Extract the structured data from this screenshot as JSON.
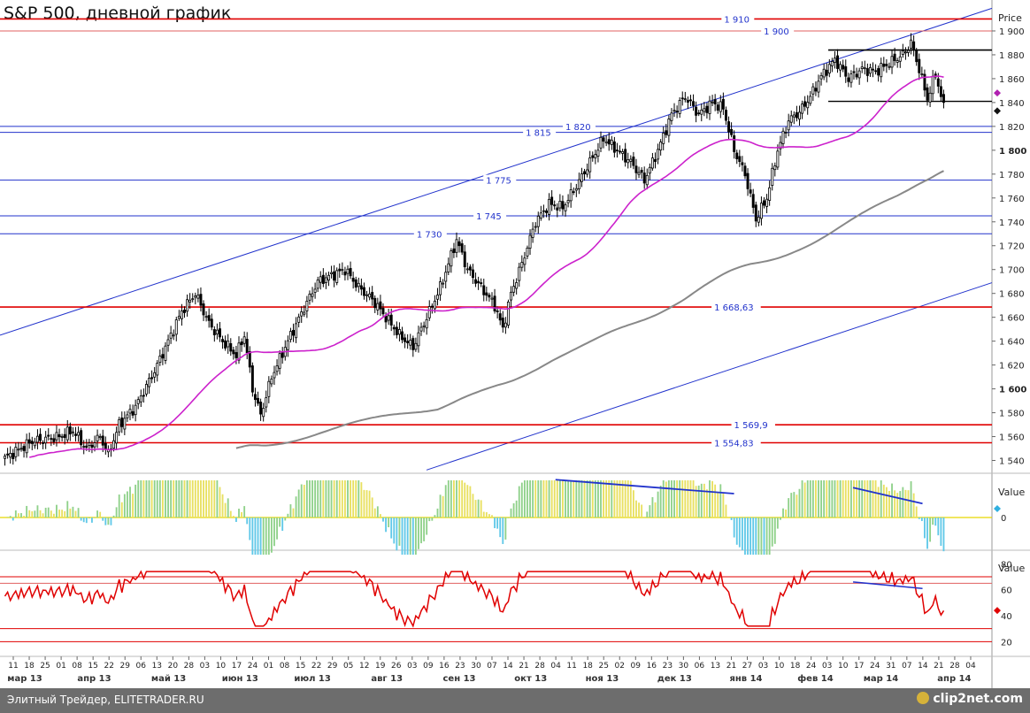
{
  "chart_data": [
    {
      "type": "candlestick",
      "title": "S&P 500, дневной график",
      "y_axis_label": "Price",
      "ylim": [
        1530,
        1920
      ],
      "y_ticks": [
        {
          "value": 1540,
          "label": "1 540"
        },
        {
          "value": 1560,
          "label": "1 560"
        },
        {
          "value": 1580,
          "label": "1 580"
        },
        {
          "value": 1600,
          "label": "1 600",
          "bold": true
        },
        {
          "value": 1620,
          "label": "1 620"
        },
        {
          "value": 1640,
          "label": "1 640"
        },
        {
          "value": 1660,
          "label": "1 660"
        },
        {
          "value": 1680,
          "label": "1 680"
        },
        {
          "value": 1700,
          "label": "1 700"
        },
        {
          "value": 1720,
          "label": "1 720"
        },
        {
          "value": 1740,
          "label": "1 740"
        },
        {
          "value": 1760,
          "label": "1 760"
        },
        {
          "value": 1780,
          "label": "1 780"
        },
        {
          "value": 1800,
          "label": "1 800",
          "bold": true
        },
        {
          "value": 1820,
          "label": "1 820"
        },
        {
          "value": 1840,
          "label": "1 840"
        },
        {
          "value": 1860,
          "label": "1 860"
        },
        {
          "value": 1880,
          "label": "1 880"
        },
        {
          "value": 1900,
          "label": "1 900"
        }
      ],
      "levels": [
        {
          "value": 1910,
          "label": "1 910",
          "color": "#e00000",
          "label_x": 0.73
        },
        {
          "value": 1900,
          "label": "1 900",
          "color": "#e06060",
          "label_x": 0.77
        },
        {
          "value": 1820,
          "label": "1 820",
          "color": "#2233cc",
          "label_x": 0.57
        },
        {
          "value": 1815,
          "label": "1 815",
          "color": "#2233cc",
          "label_x": 0.53
        },
        {
          "value": 1775,
          "label": "1 775",
          "color": "#2233cc",
          "label_x": 0.49
        },
        {
          "value": 1745,
          "label": "1 745",
          "color": "#2233cc",
          "label_x": 0.48
        },
        {
          "value": 1730,
          "label": "1 730",
          "color": "#2233cc",
          "label_x": 0.42
        },
        {
          "value": 1668.63,
          "label": "1 668,63",
          "color": "#e00000",
          "label_x": 0.72
        },
        {
          "value": 1569.9,
          "label": "1 569,9",
          "color": "#e00000",
          "label_x": 0.74
        },
        {
          "value": 1554.83,
          "label": "1 554,83",
          "color": "#e00000",
          "label_x": 0.72
        }
      ],
      "channel": {
        "upper": {
          "from": [
            0,
            1645
          ],
          "to": [
            1.0,
            1919
          ]
        },
        "lower": {
          "from": [
            0.43,
            1532
          ],
          "to": [
            1.0,
            1689
          ]
        }
      },
      "range_box": {
        "top": 1884,
        "bottom": 1841,
        "from": 0.835,
        "to": 1.0
      },
      "last_price_markers": [
        {
          "value": 1848,
          "color": "#b020b0",
          "shape": "diamond"
        },
        {
          "value": 1833,
          "color": "#111111",
          "shape": "diamond"
        }
      ],
      "anchor_prices": [
        [
          0,
          1542
        ],
        [
          10,
          1556
        ],
        [
          20,
          1560
        ],
        [
          25,
          1565
        ],
        [
          30,
          1550
        ],
        [
          35,
          1560
        ],
        [
          38,
          1545
        ],
        [
          42,
          1570
        ],
        [
          48,
          1585
        ],
        [
          55,
          1615
        ],
        [
          60,
          1640
        ],
        [
          65,
          1665
        ],
        [
          70,
          1680
        ],
        [
          75,
          1655
        ],
        [
          80,
          1640
        ],
        [
          85,
          1628
        ],
        [
          88,
          1645
        ],
        [
          91,
          1600
        ],
        [
          94,
          1578
        ],
        [
          98,
          1610
        ],
        [
          104,
          1640
        ],
        [
          110,
          1668
        ],
        [
          115,
          1690
        ],
        [
          120,
          1695
        ],
        [
          125,
          1700
        ],
        [
          130,
          1685
        ],
        [
          135,
          1675
        ],
        [
          140,
          1660
        ],
        [
          145,
          1645
        ],
        [
          150,
          1635
        ],
        [
          155,
          1660
        ],
        [
          160,
          1685
        ],
        [
          166,
          1725
        ],
        [
          170,
          1700
        ],
        [
          175,
          1685
        ],
        [
          180,
          1670
        ],
        [
          183,
          1650
        ],
        [
          186,
          1680
        ],
        [
          190,
          1705
        ],
        [
          195,
          1740
        ],
        [
          200,
          1755
        ],
        [
          205,
          1752
        ],
        [
          210,
          1770
        ],
        [
          215,
          1790
        ],
        [
          220,
          1810
        ],
        [
          225,
          1800
        ],
        [
          230,
          1790
        ],
        [
          235,
          1775
        ],
        [
          240,
          1800
        ],
        [
          245,
          1830
        ],
        [
          250,
          1845
        ],
        [
          255,
          1830
        ],
        [
          260,
          1840
        ],
        [
          264,
          1835
        ],
        [
          268,
          1800
        ],
        [
          272,
          1780
        ],
        [
          276,
          1742
        ],
        [
          280,
          1760
        ],
        [
          284,
          1800
        ],
        [
          288,
          1825
        ],
        [
          292,
          1832
        ],
        [
          296,
          1845
        ],
        [
          300,
          1862
        ],
        [
          305,
          1876
        ],
        [
          310,
          1860
        ],
        [
          315,
          1868
        ],
        [
          320,
          1866
        ],
        [
          325,
          1873
        ],
        [
          330,
          1880
        ],
        [
          333,
          1890
        ],
        [
          336,
          1868
        ],
        [
          339,
          1843
        ],
        [
          342,
          1864
        ],
        [
          345,
          1836
        ]
      ],
      "ma_color": "#cc22cc",
      "ma2_color": "#888888"
    },
    {
      "type": "histogram",
      "y_axis_label": "Value",
      "y_ticks": [
        {
          "value": 0,
          "label": "0"
        }
      ],
      "ylim": [
        -1,
        1
      ],
      "divergence_lines": [
        {
          "from": [
            0.56,
            0.95
          ],
          "to": [
            0.74,
            0.6
          ]
        },
        {
          "from": [
            0.86,
            0.75
          ],
          "to": [
            0.93,
            0.35
          ]
        }
      ]
    },
    {
      "type": "line",
      "y_axis_label": "Value",
      "ylim": [
        10,
        85
      ],
      "y_ticks": [
        {
          "value": 20,
          "label": "20"
        },
        {
          "value": 40,
          "label": "40"
        },
        {
          "value": 60,
          "label": "60"
        },
        {
          "value": 80,
          "label": "80"
        }
      ],
      "levels": [
        {
          "value": 70,
          "color": "#e00000"
        },
        {
          "value": 65,
          "color": "#e06060"
        },
        {
          "value": 30,
          "color": "#e00000"
        },
        {
          "value": 20,
          "color": "#e00000"
        }
      ],
      "last_marker": {
        "value": 44,
        "color": "#e00000"
      },
      "divergence_line": {
        "from": [
          0.86,
          66
        ],
        "to": [
          0.93,
          61
        ]
      }
    }
  ],
  "x_axis": {
    "day_labels": [
      "11",
      "18",
      "25",
      "01",
      "08",
      "15",
      "22",
      "29",
      "06",
      "13",
      "20",
      "28",
      "03",
      "10",
      "17",
      "24",
      "01",
      "08",
      "15",
      "22",
      "29",
      "05",
      "12",
      "19",
      "26",
      "03",
      "09",
      "16",
      "23",
      "30",
      "07",
      "14",
      "21",
      "28",
      "04",
      "11",
      "18",
      "25",
      "02",
      "09",
      "16",
      "23",
      "30",
      "06",
      "13",
      "21",
      "27",
      "03",
      "10",
      "18",
      "24",
      "03",
      "10",
      "17",
      "24",
      "31",
      "07",
      "14",
      "21",
      "28",
      "04"
    ],
    "month_labels": [
      {
        "label": "мар 13",
        "pos": 0.025
      },
      {
        "label": "апр 13",
        "pos": 0.095
      },
      {
        "label": "май 13",
        "pos": 0.17
      },
      {
        "label": "июн 13",
        "pos": 0.242
      },
      {
        "label": "июл 13",
        "pos": 0.315
      },
      {
        "label": "авг 13",
        "pos": 0.39
      },
      {
        "label": "сен 13",
        "pos": 0.463
      },
      {
        "label": "окт 13",
        "pos": 0.535
      },
      {
        "label": "ноя 13",
        "pos": 0.607
      },
      {
        "label": "дек 13",
        "pos": 0.68
      },
      {
        "label": "янв 14",
        "pos": 0.752
      },
      {
        "label": "фев 14",
        "pos": 0.822
      },
      {
        "label": "мар 14",
        "pos": 0.888
      },
      {
        "label": "апр 14",
        "pos": 0.962
      }
    ]
  },
  "footer": {
    "left_text": "Элитный Трейдер, ELITETRADER.RU",
    "logo_text": "clip2net.com"
  }
}
